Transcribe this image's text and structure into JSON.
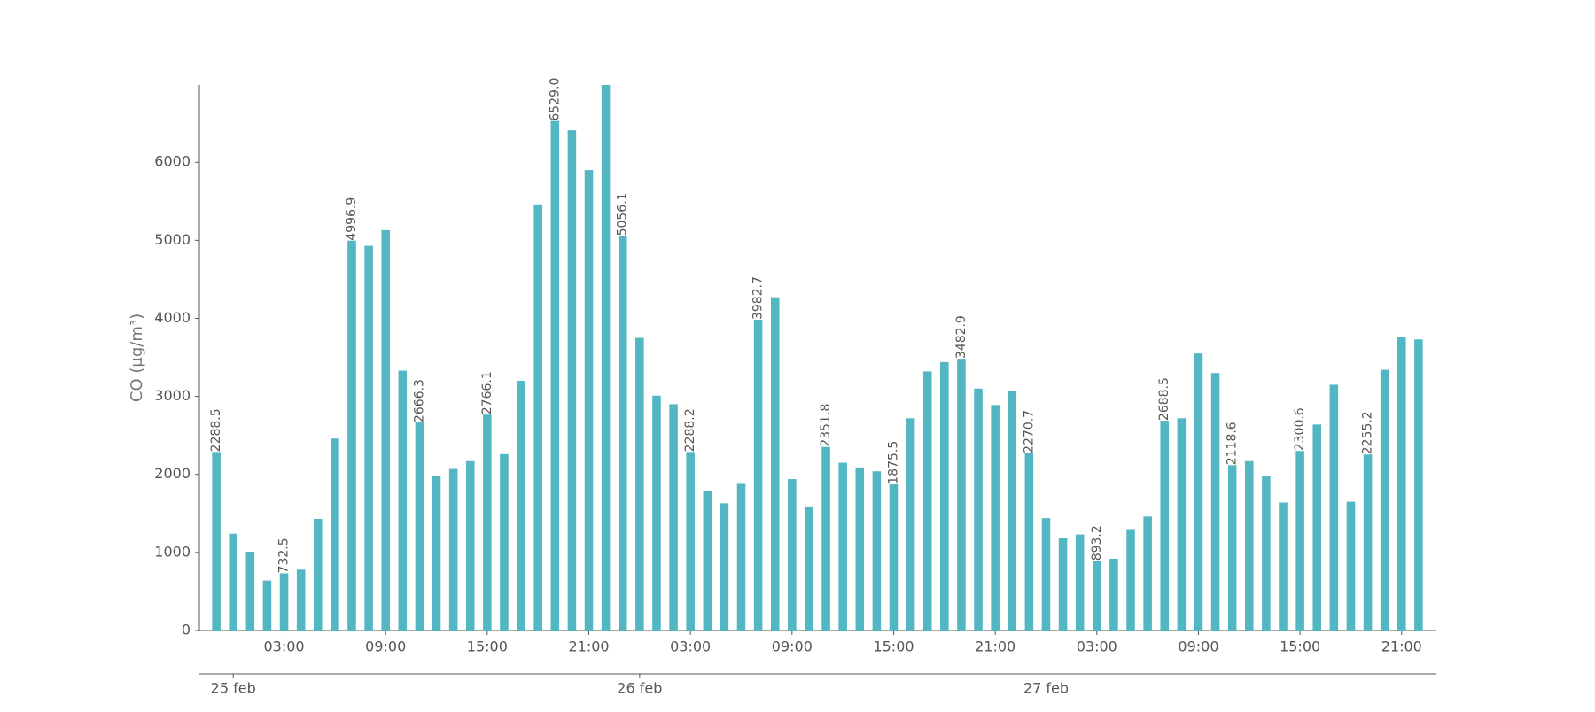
{
  "chart_data": {
    "type": "bar",
    "y_label": "CO (μg/m³)",
    "color": "#52b6c3",
    "x": [
      -1,
      0,
      1,
      2,
      3,
      4,
      5,
      6,
      7,
      8,
      9,
      10,
      11,
      12,
      13,
      14,
      15,
      16,
      17,
      18,
      19,
      20,
      21,
      22,
      23,
      24,
      25,
      26,
      27,
      28,
      29,
      30,
      31,
      32,
      33,
      34,
      35,
      36,
      37,
      38,
      39,
      40,
      41,
      42,
      43,
      44,
      45,
      46,
      47,
      48,
      49,
      50,
      51,
      52,
      53,
      54,
      55,
      56,
      57,
      58,
      59,
      60,
      61,
      62,
      63,
      64,
      65,
      66,
      67,
      68,
      69,
      70
    ],
    "values": [
      2288.5,
      1240,
      1010,
      640,
      732.5,
      780,
      1430,
      2460,
      4996.9,
      4930,
      5130,
      3330,
      2666.3,
      1980,
      2070,
      2170,
      2766.1,
      2260,
      3200,
      5460,
      6529.0,
      6410,
      5900,
      6990,
      5056.1,
      3750,
      3010,
      2900,
      2288.2,
      1790,
      1630,
      1890,
      3982.7,
      4270,
      1940,
      1590,
      2351.8,
      2150,
      2090,
      2040,
      1875.5,
      2720,
      3320,
      3440,
      3482.9,
      3100,
      2890,
      3070,
      2270.7,
      1440,
      1180,
      1230,
      893.2,
      920,
      1300,
      1460,
      2688.5,
      2720,
      3550,
      3300,
      2118.6,
      2170,
      1980,
      1640,
      2300.6,
      2640,
      3150,
      1650,
      2255.2,
      3340,
      3760,
      3730
    ],
    "value_labels": [
      "2288.5",
      null,
      null,
      null,
      "732.5",
      null,
      null,
      null,
      "4996.9",
      null,
      null,
      null,
      "2666.3",
      null,
      null,
      null,
      "2766.1",
      null,
      null,
      null,
      "6529.0",
      null,
      null,
      null,
      "5056.1",
      null,
      null,
      null,
      "2288.2",
      null,
      null,
      null,
      "3982.7",
      null,
      null,
      null,
      "2351.8",
      null,
      null,
      null,
      "1875.5",
      null,
      null,
      null,
      "3482.9",
      null,
      null,
      null,
      "2270.7",
      null,
      null,
      null,
      "893.2",
      null,
      null,
      null,
      "2688.5",
      null,
      null,
      null,
      "2118.6",
      null,
      null,
      null,
      "2300.6",
      null,
      null,
      null,
      "2255.2",
      null,
      null,
      null
    ],
    "xlim": [
      -2,
      71
    ],
    "xticks": [
      {
        "value": 3,
        "label": "03:00"
      },
      {
        "value": 9,
        "label": "09:00"
      },
      {
        "value": 15,
        "label": "15:00"
      },
      {
        "value": 21,
        "label": "21:00"
      },
      {
        "value": 27,
        "label": "03:00"
      },
      {
        "value": 33,
        "label": "09:00"
      },
      {
        "value": 39,
        "label": "15:00"
      },
      {
        "value": 45,
        "label": "21:00"
      },
      {
        "value": 51,
        "label": "03:00"
      },
      {
        "value": 57,
        "label": "09:00"
      },
      {
        "value": 63,
        "label": "15:00"
      },
      {
        "value": 69,
        "label": "21:00"
      }
    ],
    "date_ticks": [
      {
        "value": 0,
        "label": "25 feb"
      },
      {
        "value": 24,
        "label": "26 feb"
      },
      {
        "value": 48,
        "label": "27 feb"
      }
    ],
    "ylim": [
      0,
      6990
    ],
    "yticks": [
      0,
      1000,
      2000,
      3000,
      4000,
      5000,
      6000
    ]
  }
}
